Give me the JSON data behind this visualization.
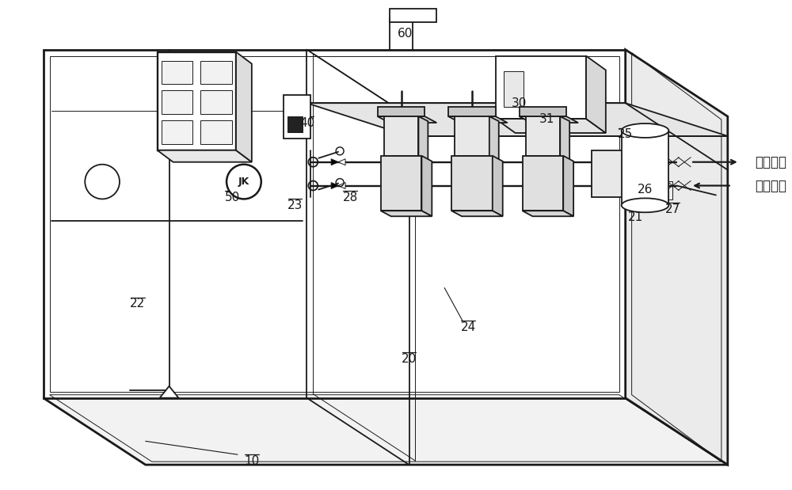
{
  "bg_color": "#ffffff",
  "line_color": "#1a1a1a",
  "lw": 1.3,
  "lw_thick": 2.0,
  "lw_thin": 0.7,
  "labels": {
    "market_label": "市政供水",
    "life_label": "生活供水"
  }
}
